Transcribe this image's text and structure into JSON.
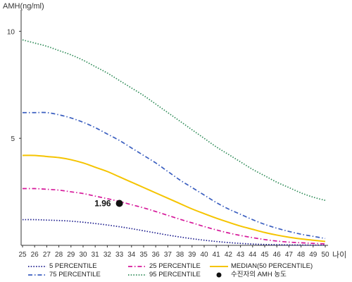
{
  "chart_data": {
    "type": "line",
    "ylabel": "AMH(ng/ml)",
    "xlabel": "나이",
    "x": [
      25,
      26,
      27,
      28,
      29,
      30,
      31,
      32,
      33,
      34,
      35,
      36,
      37,
      38,
      39,
      40,
      41,
      42,
      43,
      44,
      45,
      46,
      47,
      48,
      49,
      50
    ],
    "xlim": [
      25,
      50
    ],
    "ylim": [
      0,
      11
    ],
    "yticks": [
      5,
      10
    ],
    "grid": false,
    "legend_position": "bottom",
    "series": [
      {
        "name": "95 PERCENTILE",
        "color": "#2e8b57",
        "dash": "dotted",
        "values": [
          9.6,
          9.45,
          9.3,
          9.1,
          8.9,
          8.65,
          8.35,
          8.05,
          7.7,
          7.35,
          7.0,
          6.6,
          6.2,
          5.8,
          5.4,
          5.0,
          4.6,
          4.25,
          3.9,
          3.55,
          3.25,
          2.95,
          2.7,
          2.45,
          2.25,
          2.1
        ]
      },
      {
        "name": "75 PERCENTILE",
        "color": "#3b5fc0",
        "dash": "dashdot",
        "values": [
          6.2,
          6.2,
          6.2,
          6.1,
          5.95,
          5.75,
          5.5,
          5.2,
          4.9,
          4.55,
          4.2,
          3.85,
          3.45,
          3.05,
          2.7,
          2.35,
          2.0,
          1.7,
          1.45,
          1.2,
          0.98,
          0.8,
          0.65,
          0.52,
          0.42,
          0.32
        ]
      },
      {
        "name": "MEDIAN(50 PERCENTILE)",
        "color": "#f5c400",
        "dash": "solid",
        "values": [
          4.2,
          4.2,
          4.15,
          4.1,
          4.0,
          3.85,
          3.65,
          3.45,
          3.2,
          2.95,
          2.7,
          2.45,
          2.2,
          1.95,
          1.7,
          1.48,
          1.27,
          1.08,
          0.9,
          0.75,
          0.6,
          0.48,
          0.38,
          0.3,
          0.24,
          0.18
        ]
      },
      {
        "name": "25 PERCENTILE",
        "color": "#d6189a",
        "dash": "dashdot",
        "values": [
          2.65,
          2.65,
          2.62,
          2.58,
          2.5,
          2.42,
          2.3,
          2.18,
          2.05,
          1.9,
          1.75,
          1.58,
          1.4,
          1.22,
          1.05,
          0.88,
          0.72,
          0.58,
          0.46,
          0.36,
          0.27,
          0.2,
          0.15,
          0.12,
          0.09,
          0.07
        ]
      },
      {
        "name": "5 PERCENTILE",
        "color": "#1a1a8c",
        "dash": "dotted",
        "values": [
          1.2,
          1.2,
          1.18,
          1.16,
          1.13,
          1.08,
          1.02,
          0.95,
          0.87,
          0.78,
          0.68,
          0.58,
          0.48,
          0.39,
          0.31,
          0.24,
          0.18,
          0.13,
          0.09,
          0.06,
          0.04,
          0.03,
          0.02,
          0.015,
          0.01,
          0.01
        ]
      }
    ],
    "marker": {
      "name": "수진자의 AMH 농도",
      "x": 33,
      "y": 1.96,
      "label": "1.96",
      "color": "#111111"
    }
  },
  "legend": [
    {
      "label": "5 PERCENTILE",
      "color": "#1a1a8c",
      "dash": "dotted"
    },
    {
      "label": "25 PERCENTILE",
      "color": "#d6189a",
      "dash": "dashdot"
    },
    {
      "label": "MEDIAN(50 PERCENTILE)",
      "color": "#f5c400",
      "dash": "solid"
    },
    {
      "label": "75 PERCENTILE",
      "color": "#3b5fc0",
      "dash": "dashdot"
    },
    {
      "label": "95 PERCENTILE",
      "color": "#2e8b57",
      "dash": "dotted"
    },
    {
      "label": "수진자의 AMH 농도",
      "color": "#111111",
      "dash": "marker"
    }
  ]
}
